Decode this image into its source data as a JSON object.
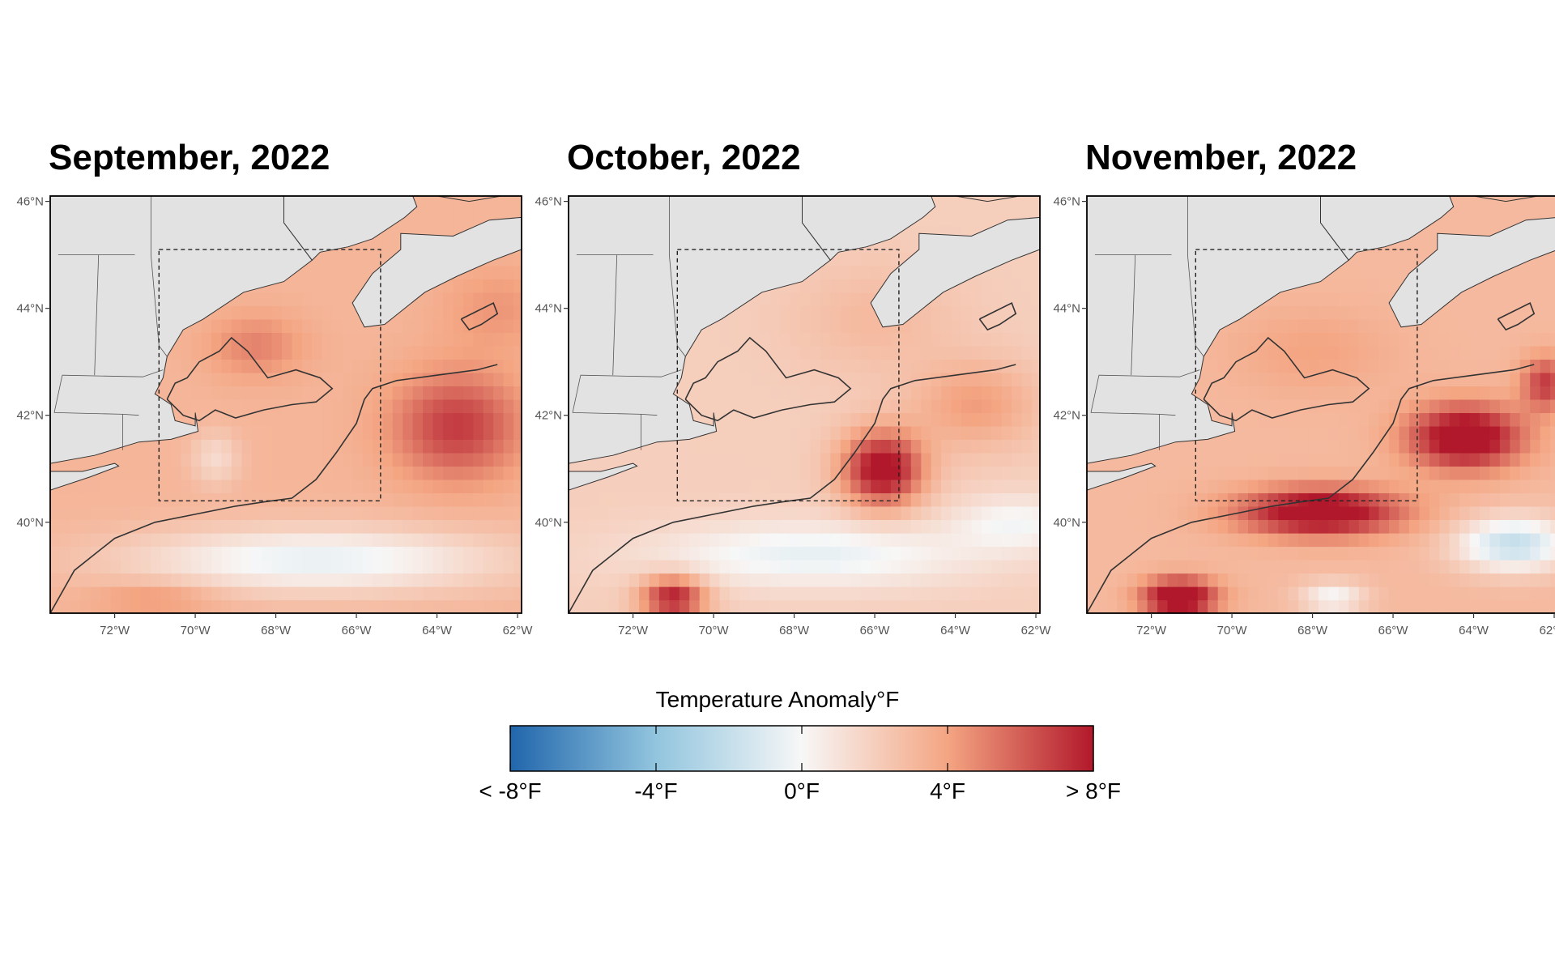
{
  "panels": [
    {
      "title": "September, 2022",
      "pattern": "sep"
    },
    {
      "title": "October, 2022",
      "pattern": "oct"
    },
    {
      "title": "November, 2022",
      "pattern": "nov"
    }
  ],
  "lon_ticks": [
    "72°W",
    "70°W",
    "68°W",
    "66°W",
    "64°W",
    "62°W"
  ],
  "lat_ticks": [
    "46°N",
    "44°N",
    "42°N",
    "40°N"
  ],
  "map_extent": {
    "lon": [
      -73.6,
      -61.9
    ],
    "lat": [
      38.3,
      46.1
    ]
  },
  "study_box": {
    "lon": [
      -70.9,
      -65.4
    ],
    "lat": [
      40.4,
      45.1
    ]
  },
  "legend": {
    "title": "Temperature Anomaly°F",
    "labels": [
      "< -8°F",
      "-4°F",
      "0°F",
      "4°F",
      "> 8°F"
    ],
    "values": [
      -8,
      -4,
      0,
      4,
      8
    ],
    "colors": [
      "#2166ac",
      "#92c5de",
      "#f7f7f7",
      "#f4a582",
      "#b2182b"
    ]
  },
  "colors": {
    "land": "#e2e2e2",
    "coast": "#333333",
    "frame": "#000000"
  }
}
